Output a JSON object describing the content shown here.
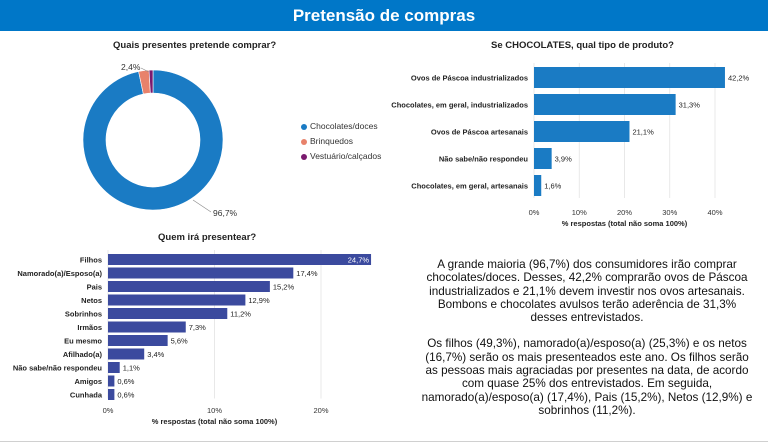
{
  "header": {
    "title": "Pretensão de compras"
  },
  "colors": {
    "header_bg": "#0077c8",
    "donut_main": "#1a7bc4",
    "donut_orange": "#e8826b",
    "donut_purple": "#7a1a6e",
    "bar_blue": "#1a7bc4",
    "bar_navy": "#3b4a9e"
  },
  "chart_data": [
    {
      "type": "pie",
      "title": "Quais presentes pretende comprar?",
      "labels": [
        "Chocolates/doces",
        "Brinquedos",
        "Vestuário/calçados"
      ],
      "values": [
        96.7,
        2.4,
        0.9
      ],
      "data_labels": [
        "96,7%",
        "2,4%",
        ""
      ],
      "colors": [
        "#1a7bc4",
        "#e8826b",
        "#7a1a6e"
      ],
      "legend": "right"
    },
    {
      "type": "bar",
      "orientation": "horizontal",
      "title": "Se CHOCOLATES, qual tipo de produto?",
      "categories": [
        "Ovos de Páscoa industrializados",
        "Chocolates, em geral, industrializados",
        "Ovos de Páscoa artesanais",
        "Não sabe/não respondeu",
        "Chocolates, em geral, artesanais"
      ],
      "values": [
        42.2,
        31.3,
        21.1,
        3.9,
        1.6
      ],
      "data_labels": [
        "42,2%",
        "31,3%",
        "21,1%",
        "3,9%",
        "1,6%"
      ],
      "xlim": [
        0,
        40
      ],
      "ticks": [
        0,
        10,
        20,
        30,
        40
      ],
      "tick_labels": [
        "0%",
        "10%",
        "20%",
        "30%",
        "40%"
      ],
      "xlabel": "% respostas (total não soma 100%)",
      "color": "#1a7bc4"
    },
    {
      "type": "bar",
      "orientation": "horizontal",
      "title": "Quem irá presentear?",
      "categories": [
        "Filhos",
        "Namorado(a)/Esposo(a)",
        "Pais",
        "Netos",
        "Sobrinhos",
        "Irmãos",
        "Eu mesmo",
        "Afilhado(a)",
        "Não sabe/não respondeu",
        "Amigos",
        "Cunhada"
      ],
      "values": [
        24.7,
        17.4,
        15.2,
        12.9,
        11.2,
        7.3,
        5.6,
        3.4,
        1.1,
        0.6,
        0.6
      ],
      "data_labels": [
        "24,7%",
        "17,4%",
        "15,2%",
        "12,9%",
        "11,2%",
        "7,3%",
        "5,6%",
        "3,4%",
        "1,1%",
        "0,6%",
        "0,6%"
      ],
      "xlim": [
        0,
        20
      ],
      "ticks": [
        0,
        10,
        20
      ],
      "tick_labels": [
        "0%",
        "10%",
        "20%"
      ],
      "xlabel": "% respostas (total não soma 100%)",
      "color": "#3b4a9e"
    }
  ],
  "summary": {
    "p1": "A grande maioria (96,7%) dos consumidores irão comprar chocolates/doces. Desses, 42,2% comprarão ovos de Páscoa industrializados e 21,1% devem investir nos ovos artesanais. Bombons e chocolates avulsos terão aderência de 31,3% desses entrevistados.",
    "p2": "Os filhos (49,3%), namorado(a)/esposo(a) (25,3%) e os netos (16,7%) serão os mais presenteados este ano. Os filhos serão as pessoas mais agraciadas por presentes na data, de acordo com quase 25% dos entrevistados. Em seguida, namorado(a)/esposo(a) (17,4%), Pais (15,2%), Netos (12,9%) e sobrinhos (11,2%)."
  }
}
